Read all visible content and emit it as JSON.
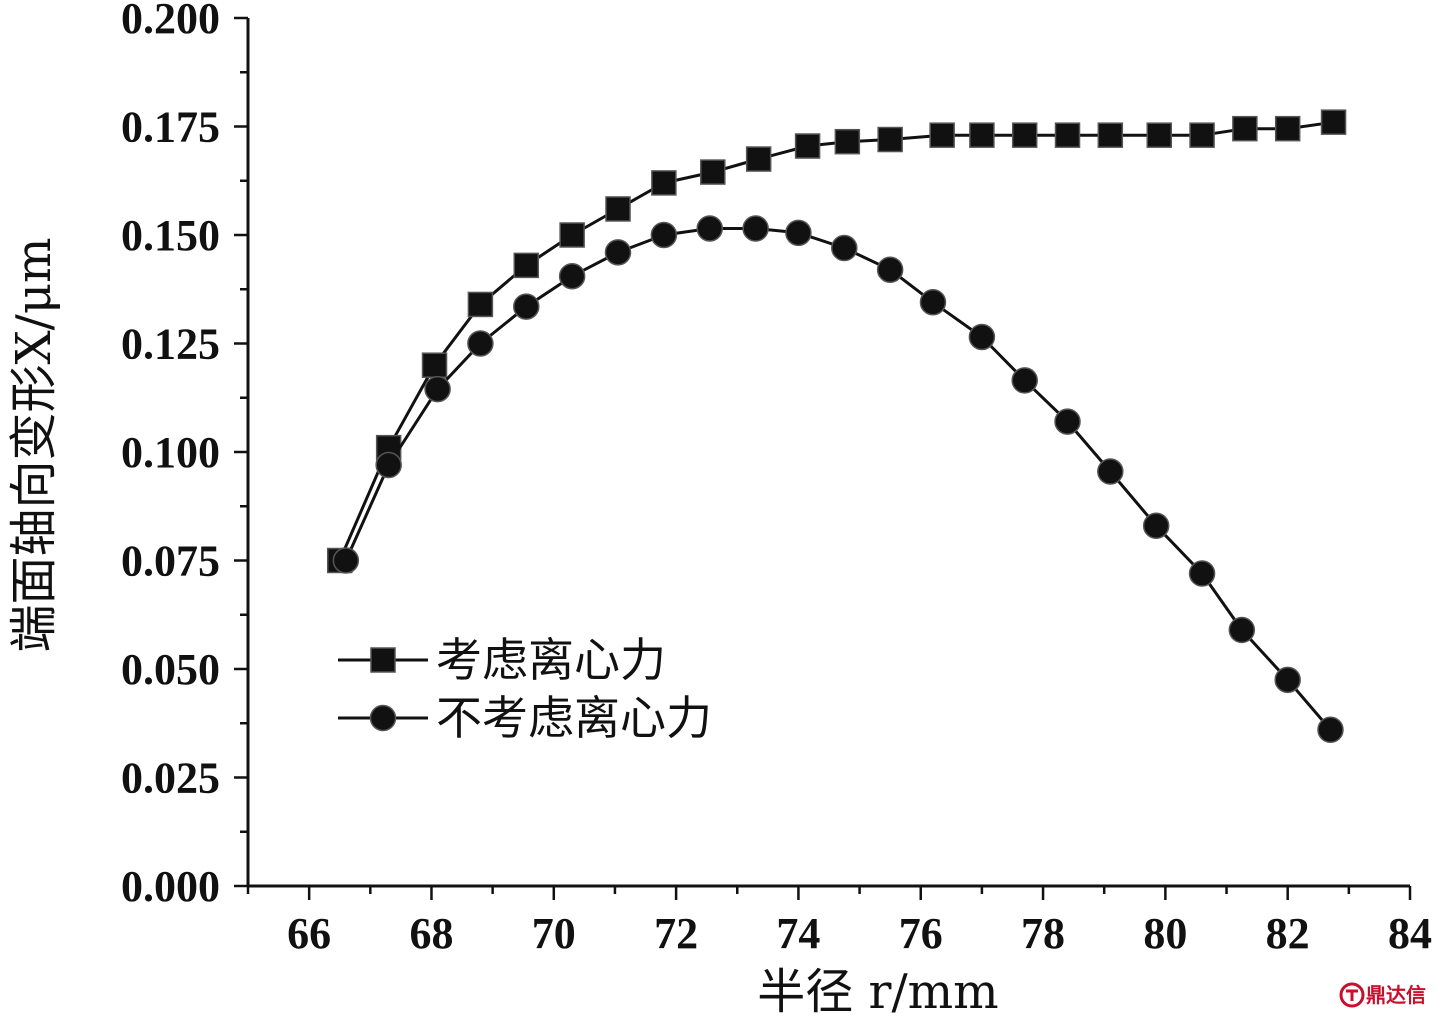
{
  "chart_data": {
    "type": "line",
    "title": "",
    "xlabel": "半径 r/mm",
    "ylabel": "端面轴向变形X/μm",
    "xlim": [
      65,
      84
    ],
    "ylim": [
      0,
      0.2
    ],
    "x_ticks": [
      "66",
      "68",
      "70",
      "72",
      "74",
      "76",
      "78",
      "80",
      "82",
      "84"
    ],
    "y_ticks": [
      "0.000",
      "0.025",
      "0.050",
      "0.075",
      "0.100",
      "0.125",
      "0.150",
      "0.175",
      "0.200"
    ],
    "grid": false,
    "legend_position": "lower-left",
    "series": [
      {
        "name": "考虑离心力",
        "marker": "square",
        "x": [
          66.5,
          67.3,
          68.05,
          68.8,
          69.55,
          70.3,
          71.05,
          71.8,
          72.6,
          73.35,
          74.15,
          74.8,
          75.5,
          76.35,
          77.0,
          77.7,
          78.4,
          79.1,
          79.9,
          80.6,
          81.3,
          82.0,
          82.75
        ],
        "y": [
          0.075,
          0.101,
          0.12,
          0.134,
          0.143,
          0.15,
          0.156,
          0.162,
          0.1645,
          0.1675,
          0.1705,
          0.1715,
          0.172,
          0.173,
          0.173,
          0.173,
          0.173,
          0.173,
          0.173,
          0.173,
          0.1745,
          0.1745,
          0.176
        ]
      },
      {
        "name": "不考虑离心力",
        "marker": "circle",
        "x": [
          66.6,
          67.3,
          68.1,
          68.8,
          69.55,
          70.3,
          71.05,
          71.8,
          72.55,
          73.3,
          74.0,
          74.75,
          75.5,
          76.2,
          77.0,
          77.7,
          78.4,
          79.1,
          79.85,
          80.6,
          81.25,
          82.0,
          82.7
        ],
        "y": [
          0.075,
          0.097,
          0.1145,
          0.125,
          0.1335,
          0.1405,
          0.146,
          0.15,
          0.1515,
          0.1515,
          0.1505,
          0.147,
          0.142,
          0.1345,
          0.1265,
          0.1165,
          0.107,
          0.0955,
          0.083,
          0.072,
          0.059,
          0.0475,
          0.036
        ]
      }
    ]
  },
  "watermark": {
    "text": "鼎达信",
    "color": "#c8102e"
  }
}
